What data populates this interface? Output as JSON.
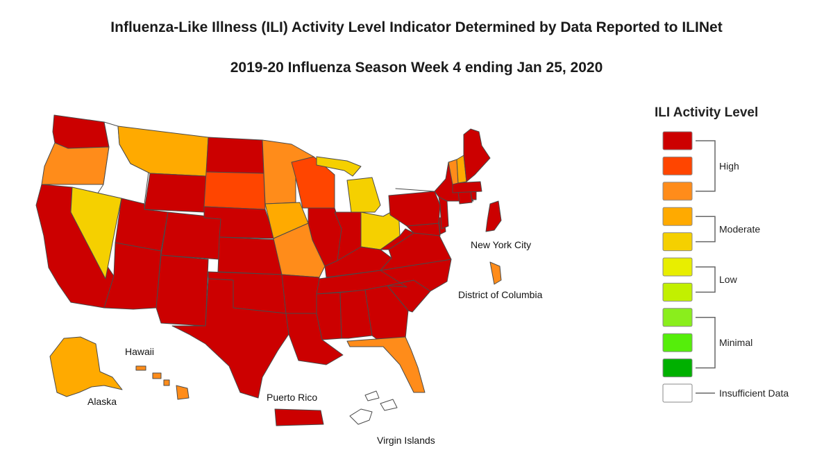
{
  "chart_data": {
    "type": "choropleth",
    "title": "Influenza-Like Illness (ILI) Activity Level Indicator Determined by Data Reported to ILINet",
    "subtitle": "2019-20 Influenza Season Week 4 ending Jan 25, 2020",
    "legend": {
      "title": "ILI Activity Level",
      "levels": [
        {
          "level": 10,
          "color": "#cc0000"
        },
        {
          "level": 9,
          "color": "#ff4500"
        },
        {
          "level": 8,
          "color": "#ff8c1a"
        },
        {
          "level": 7,
          "color": "#ffaa00"
        },
        {
          "level": 6,
          "color": "#f5d000"
        },
        {
          "level": 5,
          "color": "#e8ee00"
        },
        {
          "level": 4,
          "color": "#c2f000"
        },
        {
          "level": 3,
          "color": "#8aee1c"
        },
        {
          "level": 2,
          "color": "#55ee0a"
        },
        {
          "level": 1,
          "color": "#00b000"
        },
        {
          "level": null,
          "color": "#ffffff"
        }
      ],
      "groups": [
        {
          "label": "High",
          "levels": [
            10,
            9,
            8
          ]
        },
        {
          "label": "Moderate",
          "levels": [
            7,
            6
          ]
        },
        {
          "label": "Low",
          "levels": [
            5,
            4
          ]
        },
        {
          "label": "Minimal",
          "levels": [
            3,
            2,
            1
          ]
        },
        {
          "label": "Insufficient Data",
          "levels": [
            null
          ]
        }
      ]
    },
    "region_levels": {
      "Washington": 10,
      "Oregon": 8,
      "California": 10,
      "Idaho": null,
      "Nevada": 6,
      "Montana": 7,
      "Wyoming": 10,
      "Utah": 10,
      "Arizona": 10,
      "Colorado": 10,
      "New Mexico": 10,
      "North Dakota": 10,
      "South Dakota": 9,
      "Nebraska": 10,
      "Kansas": 10,
      "Oklahoma": 10,
      "Texas": 10,
      "Minnesota": 8,
      "Iowa": 7,
      "Missouri": 8,
      "Arkansas": 10,
      "Louisiana": 10,
      "Wisconsin": 9,
      "Illinois": 10,
      "Michigan": 6,
      "Indiana": 10,
      "Ohio": 6,
      "Kentucky": 10,
      "Tennessee": 10,
      "Mississippi": 10,
      "Alabama": 10,
      "Georgia": 10,
      "Florida": 8,
      "South Carolina": 10,
      "North Carolina": 10,
      "Virginia": 10,
      "West Virginia": 10,
      "Maryland": 10,
      "Delaware": 10,
      "Pennsylvania": 10,
      "New Jersey": 10,
      "New York": 10,
      "Connecticut": 10,
      "Rhode Island": 10,
      "Massachusetts": 10,
      "Vermont": 8,
      "New Hampshire": 7,
      "Maine": 10,
      "Alaska": 7,
      "Hawaii": 8,
      "New York City": 10,
      "District of Columbia": 8,
      "Puerto Rico": 10,
      "Virgin Islands": null
    },
    "map_labels": {
      "new_york_city": "New York City",
      "district_of_columbia": "District of Columbia",
      "hawaii": "Hawaii",
      "alaska": "Alaska",
      "puerto_rico": "Puerto Rico",
      "virgin_islands": "Virgin Islands"
    }
  }
}
